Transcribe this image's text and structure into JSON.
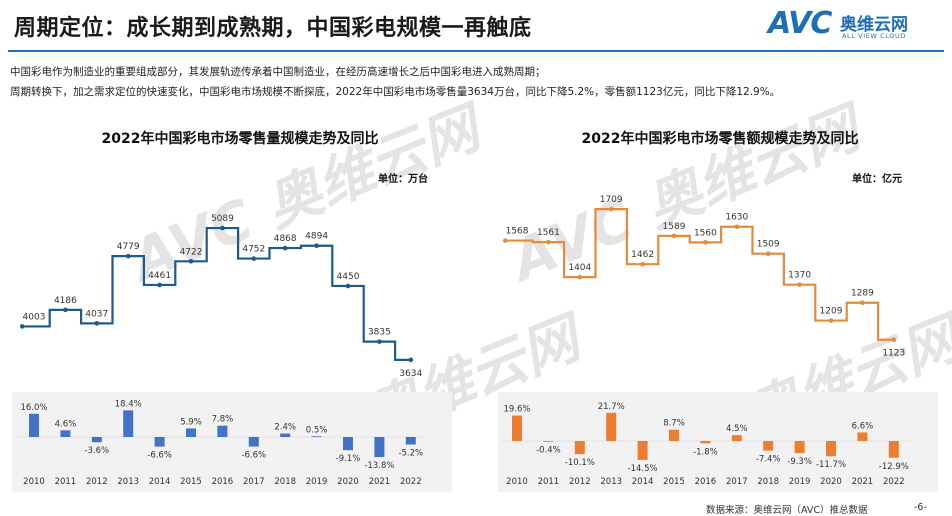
{
  "header": {
    "title": "周期定位：成长期到成熟期，中国彩电规模一再触底",
    "logo_avc": "AVC",
    "logo_cn": "奥维云网",
    "logo_en": "ALL VIEW CLOUD"
  },
  "description": {
    "line1": "中国彩电作为制造业的重要组成部分，其发展轨迹传承着中国制造业，在经历高速增长之后中国彩电进入成熟周期；",
    "line2": "周期转换下，加之需求定位的快速变化，中国彩电市场规模不断探底，2022年中国彩电市场零售量3634万台，同比下降5.2%，零售额1123亿元，同比下降12.9%。"
  },
  "colors": {
    "volume_line": "#1d5a8c",
    "volume_bar": "#4472c4",
    "value_line": "#e58a3a",
    "value_bar": "#ed7d31",
    "accent": "#1f6fb5"
  },
  "chart_data": [
    {
      "type": "line",
      "title": "2022年中国彩电市场零售量规模走势及同比",
      "unit": "单位：万台",
      "categories": [
        "2010",
        "2011",
        "2012",
        "2013",
        "2014",
        "2015",
        "2016",
        "2017",
        "2018",
        "2019",
        "2020",
        "2021",
        "2022"
      ],
      "values": [
        4003,
        4186,
        4037,
        4779,
        4461,
        4722,
        5089,
        4752,
        4868,
        4894,
        4450,
        3835,
        3634
      ],
      "value_labels": [
        "4003",
        "4186",
        "4037",
        "4779",
        "4461",
        "4722",
        "5089",
        "4752",
        "4868",
        "4894",
        "4450",
        "3835",
        "3634"
      ],
      "yoy": [
        16.0,
        4.6,
        -3.6,
        18.4,
        -6.6,
        5.9,
        7.8,
        -6.6,
        2.4,
        0.5,
        -9.1,
        -13.8,
        -5.2
      ],
      "yoy_labels": [
        "16.0%",
        "4.6%",
        "-3.6%",
        "18.4%",
        "-6.6%",
        "5.9%",
        "7.8%",
        "-6.6%",
        "2.4%",
        "0.5%",
        "-9.1%",
        "-13.8%",
        "-5.2%"
      ],
      "line_style": "step"
    },
    {
      "type": "line",
      "title": "2022年中国彩电市场零售额规模走势及同比",
      "unit": "单位：亿元",
      "categories": [
        "2010",
        "2011",
        "2012",
        "2013",
        "2014",
        "2015",
        "2016",
        "2017",
        "2018",
        "2019",
        "2020",
        "2021",
        "2022"
      ],
      "values": [
        1568,
        1561,
        1404,
        1709,
        1462,
        1589,
        1560,
        1630,
        1509,
        1370,
        1209,
        1289,
        1123
      ],
      "value_labels": [
        "1568",
        "1561",
        "1404",
        "1709",
        "1462",
        "1589",
        "1560",
        "1630",
        "1509",
        "1370",
        "1209",
        "1289",
        "1123"
      ],
      "yoy": [
        19.6,
        -0.4,
        -10.1,
        21.7,
        -14.5,
        8.7,
        -1.8,
        4.5,
        -7.4,
        -9.3,
        -11.7,
        6.6,
        -12.9
      ],
      "yoy_labels": [
        "19.6%",
        "-0.4%",
        "-10.1%",
        "21.7%",
        "-14.5%",
        "8.7%",
        "-1.8%",
        "4.5%",
        "-7.4%",
        "-9.3%",
        "-11.7%",
        "6.6%",
        "-12.9%"
      ],
      "line_style": "step"
    }
  ],
  "footer": {
    "source": "数据来源：奥维云网（AVC）推总数据",
    "page": "-6-"
  }
}
